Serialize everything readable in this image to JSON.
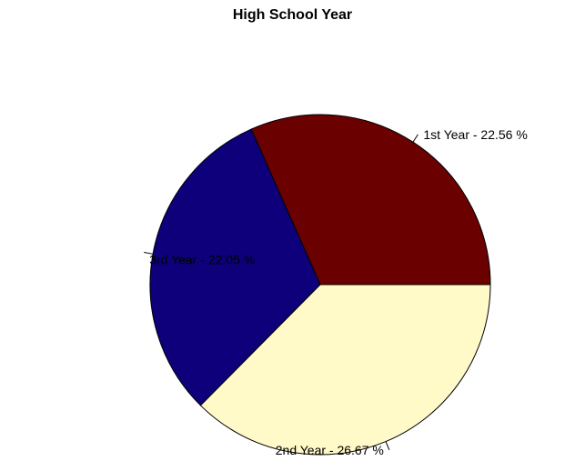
{
  "chart_data": {
    "type": "pie",
    "title": "High School Year",
    "categories": [
      "1st Year",
      "3rd Year",
      "2nd Year"
    ],
    "values": [
      22.56,
      22.05,
      26.67
    ],
    "labels": [
      "1st Year -  22.56 %",
      "3rd Year -  22.05 %",
      "2nd Year -  26.67 %"
    ],
    "colors": [
      "#6b0000",
      "#0d007a",
      "#fffac8"
    ],
    "start_angle_deg": 0,
    "direction": "counterclockwise",
    "legend": "none"
  }
}
